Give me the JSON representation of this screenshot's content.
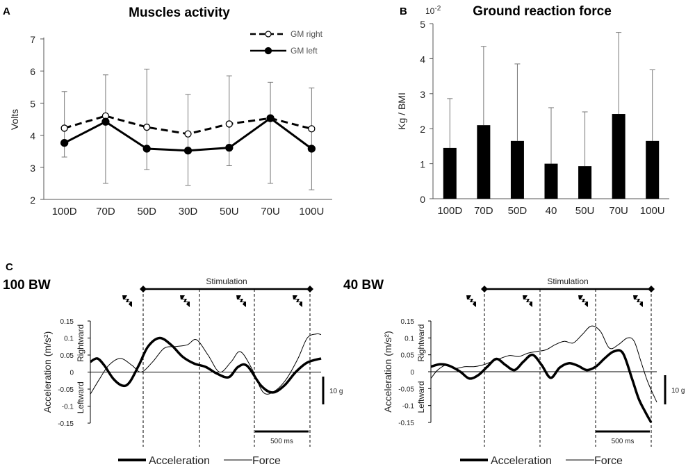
{
  "chart_data": [
    {
      "panel": "A",
      "type": "line",
      "title": "Muscles activity",
      "xlabel": "",
      "ylabel": "Volts",
      "ylim": [
        2,
        7
      ],
      "yticks": [
        "2",
        "3",
        "4",
        "5",
        "6",
        "7"
      ],
      "categories": [
        "100D",
        "70D",
        "50D",
        "30D",
        "50U",
        "70U",
        "100U"
      ],
      "legend_position": "top-right",
      "series": [
        {
          "name": "GM right",
          "style": "dashed-open-circle",
          "values": [
            4.22,
            4.6,
            4.25,
            4.04,
            4.35,
            4.53,
            4.2
          ]
        },
        {
          "name": "GM left",
          "style": "solid-filled-circle",
          "values": [
            3.76,
            4.42,
            3.58,
            3.52,
            3.61,
            4.53,
            3.58
          ]
        }
      ],
      "error_upper": [
        5.36,
        5.88,
        6.06,
        5.27,
        5.85,
        5.65,
        5.47
      ],
      "error_lower": [
        3.32,
        2.5,
        2.93,
        2.44,
        3.05,
        2.5,
        2.3
      ]
    },
    {
      "panel": "B",
      "type": "bar",
      "title": "Ground reaction force",
      "multiplier": "10-2",
      "ylabel": "Kg / BMI",
      "ylim": [
        0,
        5
      ],
      "yticks": [
        "0",
        "1",
        "2",
        "3",
        "4",
        "5"
      ],
      "categories": [
        "100D",
        "70D",
        "50D",
        "40",
        "50U",
        "70U",
        "100U"
      ],
      "values": [
        1.45,
        2.1,
        1.65,
        1.0,
        0.93,
        2.42,
        1.65
      ],
      "error_upper": [
        2.86,
        4.35,
        3.85,
        2.6,
        2.48,
        4.75,
        3.68
      ]
    },
    {
      "panel": "C",
      "type": "line",
      "title": "100 BW",
      "stimulation_label": "Stimulation",
      "ylabel": "Acceleration (m/s²)",
      "ylim": [
        -0.15,
        0.15
      ],
      "yticks": [
        "0.15",
        "0.1",
        "0.05",
        "0",
        "-0.05",
        "-0.1",
        "-0.15"
      ],
      "direction_labels": [
        "Rightward",
        "Leftward"
      ],
      "force_scale_label": "10 g",
      "time_scale_label": "500 ms",
      "legend": [
        "Acceleration",
        "Force"
      ],
      "series": [
        {
          "name": "Acceleration",
          "x": [
            0,
            3,
            6,
            10,
            14,
            17,
            21,
            25,
            30,
            35,
            40,
            45,
            50,
            55,
            60,
            64,
            68,
            74,
            79,
            84,
            89,
            94,
            100
          ],
          "values": [
            0.03,
            0.04,
            0.02,
            -0.02,
            -0.04,
            -0.03,
            0.02,
            0.075,
            0.1,
            0.08,
            0.045,
            0.025,
            0.015,
            -0.005,
            -0.015,
            0.015,
            0.018,
            -0.04,
            -0.06,
            -0.04,
            0.0,
            0.028,
            0.04
          ]
        },
        {
          "name": "Force",
          "x": [
            0,
            4,
            8,
            13,
            18,
            22,
            27,
            32,
            37,
            42,
            46,
            51,
            56,
            61,
            65,
            70,
            75,
            80,
            85,
            90,
            94,
            98,
            100
          ],
          "values": [
            -0.065,
            -0.02,
            0.02,
            0.04,
            0.02,
            0.0,
            0.03,
            0.07,
            0.075,
            0.08,
            0.095,
            0.05,
            0.0,
            0.03,
            0.06,
            0.01,
            -0.06,
            -0.055,
            -0.02,
            0.04,
            0.1,
            0.112,
            0.11
          ]
        }
      ],
      "stimulation_marks_x": [
        14,
        39,
        61,
        82
      ]
    },
    {
      "panel": "C",
      "type": "line",
      "title": "40 BW",
      "stimulation_label": "Stimulation",
      "ylabel": "Acceleration (m/s²)",
      "ylim": [
        -0.15,
        0.15
      ],
      "yticks": [
        "0.15",
        "0.1",
        "0.05",
        "0",
        "-0.05",
        "-0.1",
        "-0.15"
      ],
      "direction_labels": [
        "Rightward",
        "Leftward"
      ],
      "force_scale_label": "10 g",
      "time_scale_label": "500 ms",
      "legend": [
        "Acceleration",
        "Force"
      ],
      "series": [
        {
          "name": "Acceleration",
          "x": [
            0,
            4,
            8,
            13,
            17,
            21,
            25,
            29,
            33,
            37,
            41,
            45,
            49,
            53,
            57,
            61,
            65,
            69,
            73,
            77,
            81,
            85,
            89,
            92,
            95,
            97.5
          ],
          "values": [
            0.015,
            0.022,
            0.018,
            0.0,
            -0.02,
            -0.01,
            0.015,
            0.038,
            0.02,
            0.005,
            0.03,
            0.05,
            0.02,
            -0.018,
            0.012,
            0.025,
            0.018,
            0.005,
            0.015,
            0.04,
            0.06,
            0.055,
            -0.02,
            -0.08,
            -0.12,
            -0.15
          ]
        },
        {
          "name": "Force",
          "x": [
            0,
            3,
            7,
            11,
            15,
            19,
            23,
            27,
            31,
            35,
            39,
            43,
            47,
            51,
            55,
            59,
            63,
            67,
            71,
            75,
            79,
            83,
            87,
            90,
            93,
            96,
            100
          ],
          "values": [
            -0.02,
            0.005,
            0.02,
            0.01,
            0.015,
            0.015,
            0.02,
            0.03,
            0.04,
            0.048,
            0.045,
            0.055,
            0.06,
            0.065,
            0.08,
            0.09,
            0.085,
            0.11,
            0.135,
            0.12,
            0.07,
            0.08,
            0.1,
            0.09,
            0.03,
            -0.03,
            -0.09
          ]
        }
      ],
      "stimulation_marks_x": [
        16,
        39,
        59,
        81
      ]
    }
  ]
}
